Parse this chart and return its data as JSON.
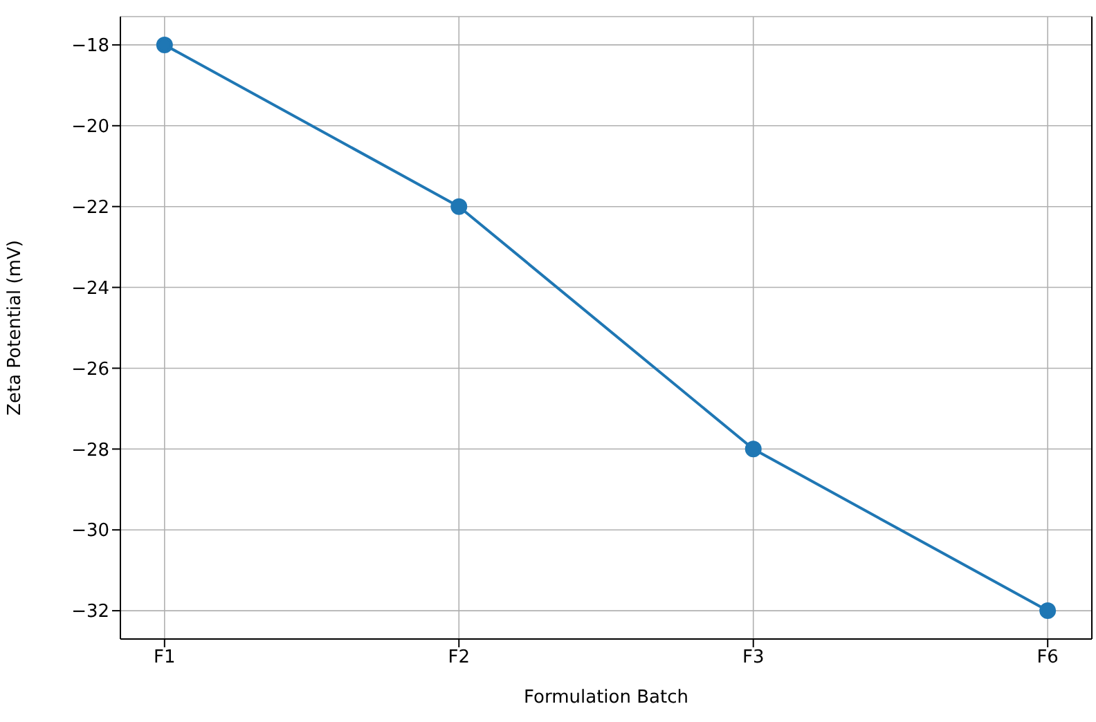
{
  "chart_data": {
    "type": "line",
    "xlabel": "Formulation Batch",
    "ylabel": "Zeta Potential (mV)",
    "categories": [
      "F1",
      "F2",
      "F3",
      "F6"
    ],
    "series": [
      {
        "color": "#1f77b4",
        "values": [
          -18,
          -22,
          -28,
          -32
        ]
      }
    ],
    "ylim": [
      -32.7,
      -17.3
    ],
    "yticks": [
      -32,
      -30,
      -28,
      -26,
      -24,
      -22,
      -20,
      -18
    ],
    "grid": true,
    "marker": "circle",
    "line_style": "solid",
    "legend": false
  }
}
